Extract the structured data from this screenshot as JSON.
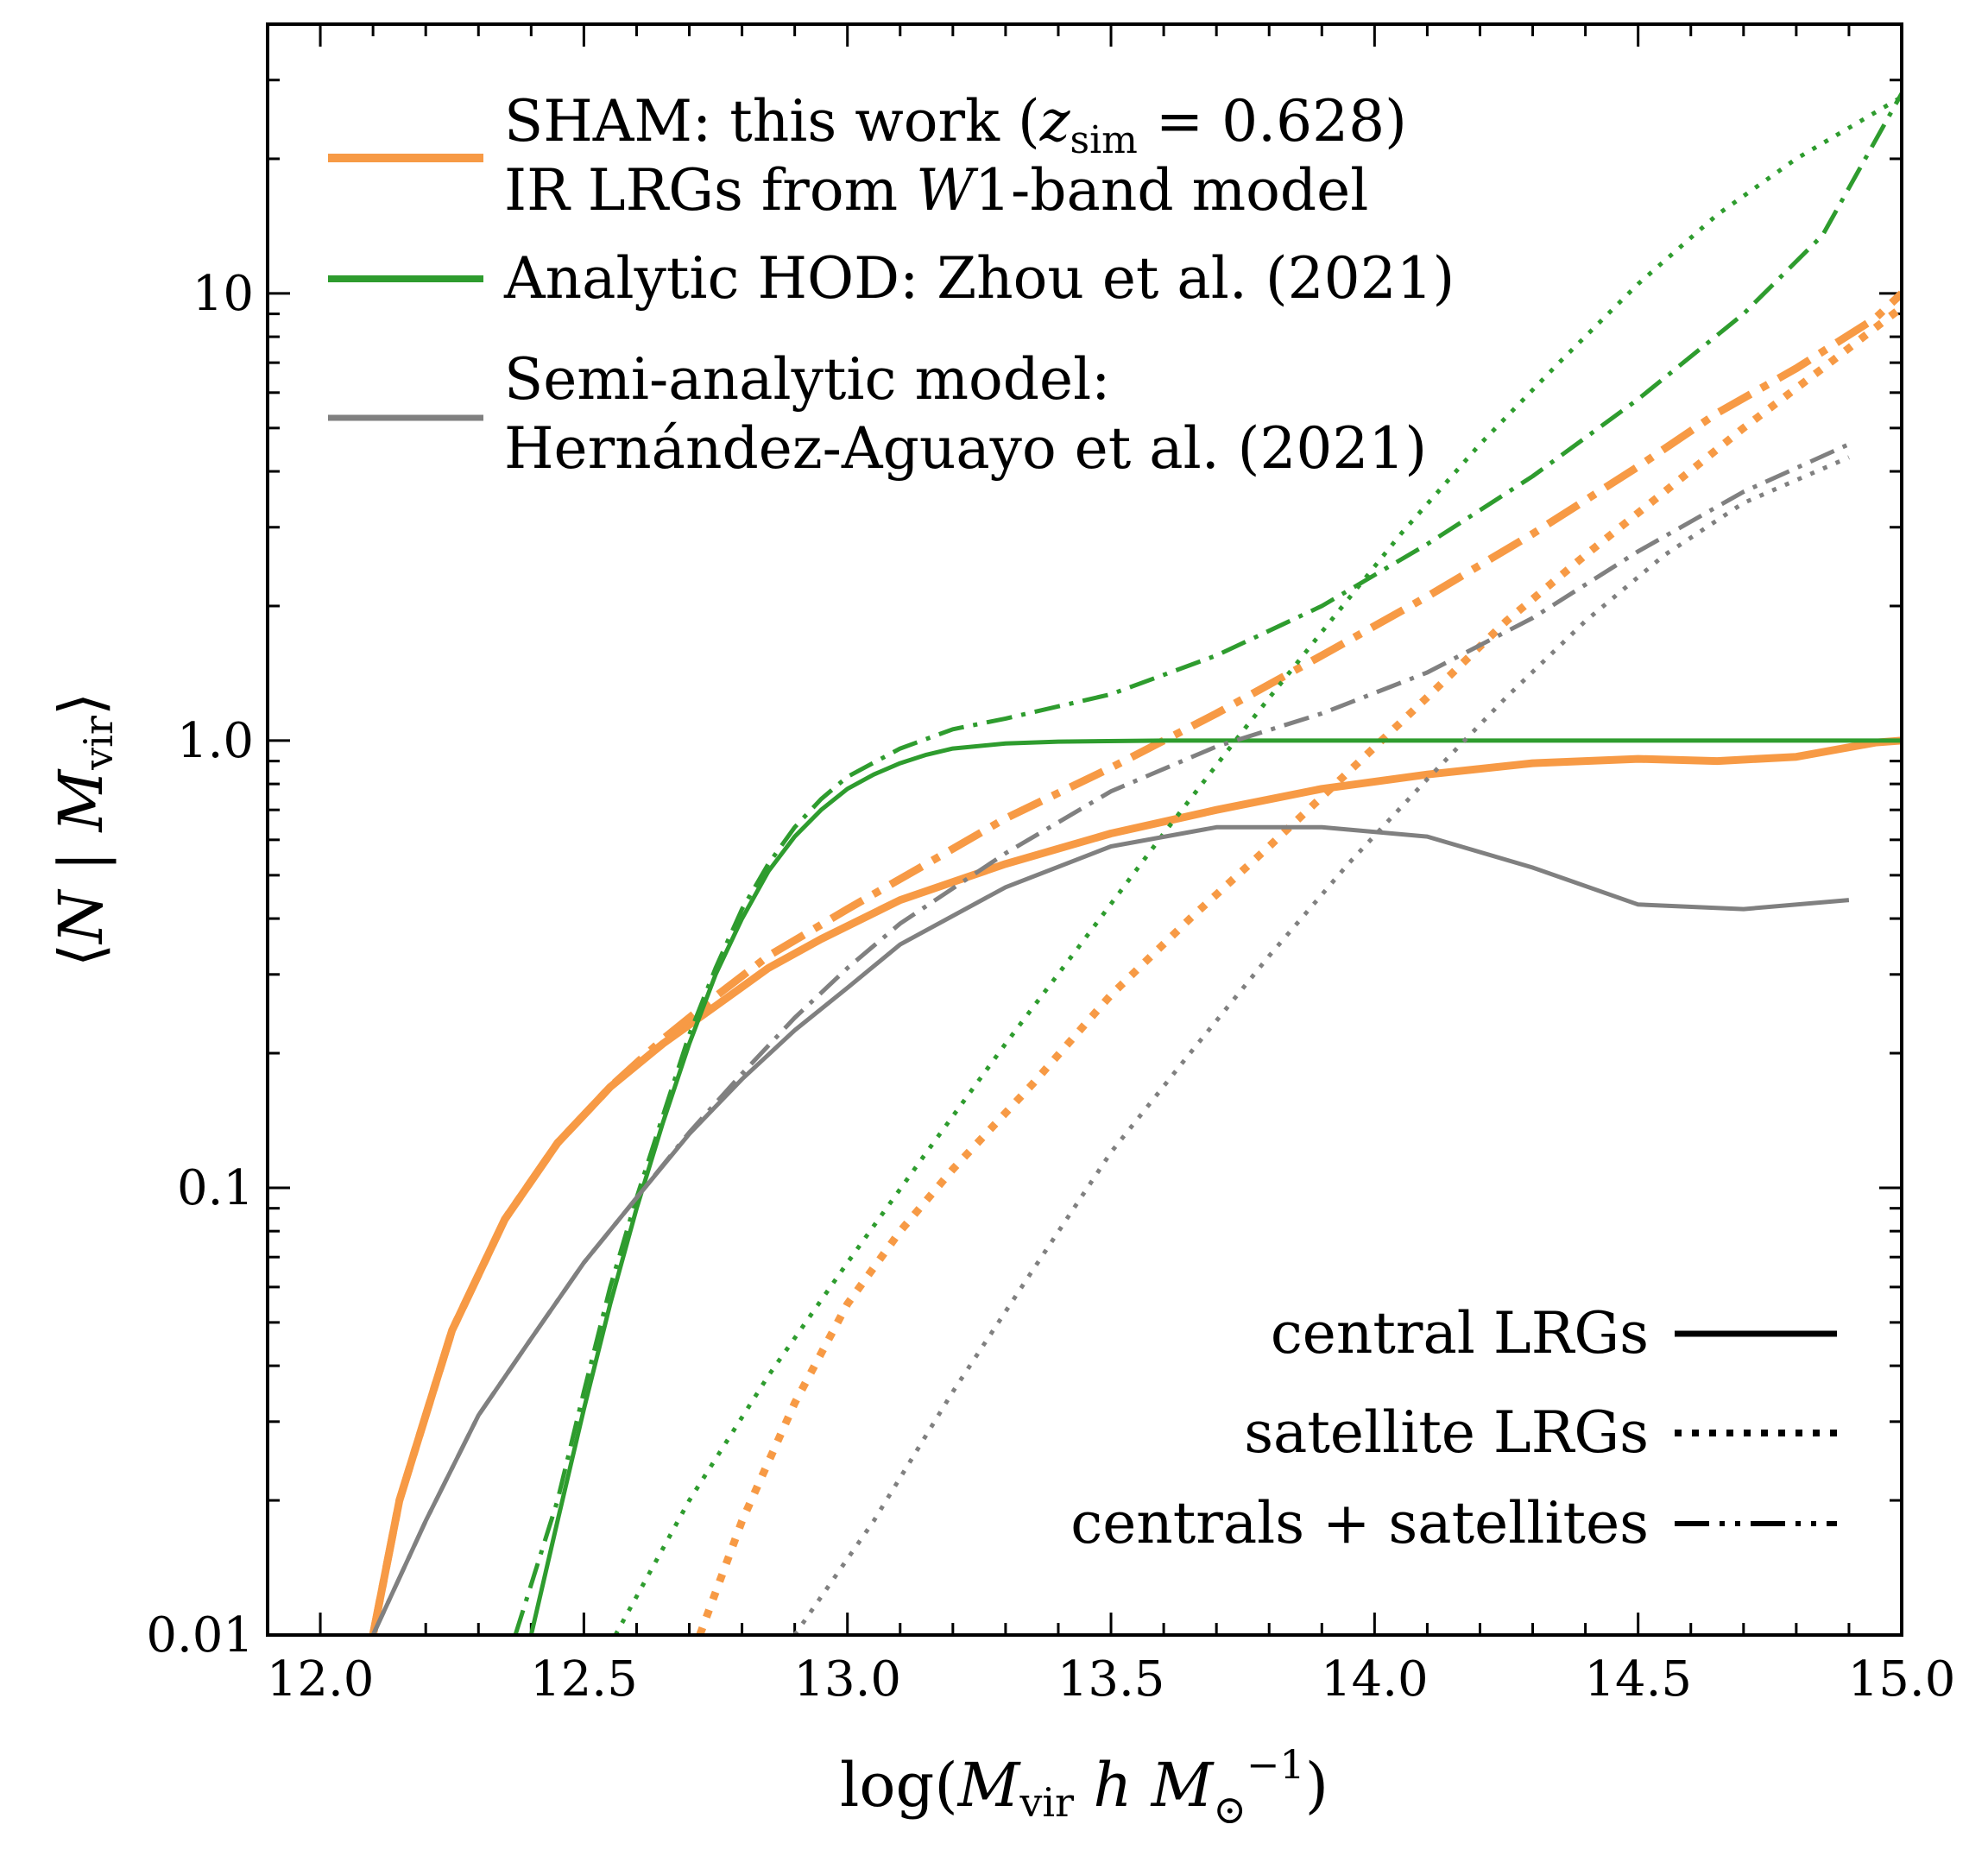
{
  "chart_data": {
    "type": "line",
    "xlabel": "log(M_vir h M_⊙^-1)",
    "ylabel": "⟨N | M_vir⟩",
    "xlim": [
      11.9,
      15.0
    ],
    "ylim": [
      0.01,
      40
    ],
    "yscale": "log",
    "xticks": [
      12.0,
      12.5,
      13.0,
      13.5,
      14.0,
      14.5,
      15.0
    ],
    "xtick_labels": [
      "12.0",
      "12.5",
      "13.0",
      "13.5",
      "14.0",
      "14.5",
      "15.0"
    ],
    "yticks": [
      0.01,
      0.1,
      1.0,
      10
    ],
    "ytick_labels": [
      "0.01",
      "0.1",
      "1.0",
      "10"
    ],
    "legend_models": [
      {
        "key": "sham",
        "color": "#f79a45",
        "lines": [
          "SHAM: this work (z_sim = 0.628)",
          "IR LRGs from W1-band model"
        ]
      },
      {
        "key": "zhou",
        "color": "#2e9c2e",
        "lines": [
          "Analytic HOD: Zhou et al. (2021)"
        ]
      },
      {
        "key": "sam",
        "color": "#808080",
        "lines": [
          "Semi-analytic model:",
          "Hernández-Aguayo et al. (2021)"
        ]
      }
    ],
    "legend_styles": [
      {
        "label": "central LRGs",
        "style": "solid"
      },
      {
        "label": "satellite LRGs",
        "style": "dotted"
      },
      {
        "label": "centrals + satellites",
        "style": "dashdot"
      }
    ],
    "series": [
      {
        "name": "SHAM central",
        "model": "sham",
        "style": "solid",
        "x": [
          12.1,
          12.15,
          12.25,
          12.35,
          12.45,
          12.55,
          12.65,
          12.75,
          12.85,
          12.95,
          13.1,
          13.3,
          13.5,
          13.7,
          13.9,
          14.1,
          14.3,
          14.5,
          14.65,
          14.8,
          14.95,
          15.0
        ],
        "y": [
          0.01,
          0.02,
          0.048,
          0.085,
          0.126,
          0.168,
          0.21,
          0.255,
          0.31,
          0.36,
          0.44,
          0.53,
          0.62,
          0.7,
          0.78,
          0.84,
          0.89,
          0.91,
          0.9,
          0.92,
          0.99,
          1.0
        ]
      },
      {
        "name": "SHAM satellite",
        "model": "sham",
        "style": "dotted",
        "x": [
          12.72,
          12.8,
          12.9,
          13.0,
          13.1,
          13.2,
          13.35,
          13.5,
          13.65,
          13.8,
          13.95,
          14.1,
          14.25,
          14.4,
          14.55,
          14.7,
          14.85,
          15.0
        ],
        "y": [
          0.01,
          0.018,
          0.033,
          0.055,
          0.08,
          0.11,
          0.17,
          0.27,
          0.4,
          0.58,
          0.85,
          1.25,
          1.85,
          2.6,
          3.6,
          5.0,
          6.8,
          9.3
        ]
      },
      {
        "name": "SHAM centrals + satellites",
        "model": "sham",
        "style": "dashdot",
        "x": [
          12.1,
          12.15,
          12.25,
          12.35,
          12.45,
          12.55,
          12.65,
          12.75,
          12.85,
          13.0,
          13.15,
          13.3,
          13.5,
          13.7,
          13.9,
          14.1,
          14.3,
          14.5,
          14.65,
          14.8,
          14.95,
          15.0
        ],
        "y": [
          0.01,
          0.02,
          0.048,
          0.085,
          0.126,
          0.168,
          0.215,
          0.268,
          0.33,
          0.42,
          0.53,
          0.67,
          0.87,
          1.15,
          1.55,
          2.1,
          2.9,
          4.1,
          5.4,
          6.8,
          8.8,
          10.0
        ]
      },
      {
        "name": "Zhou central",
        "model": "zhou",
        "style": "solid",
        "x": [
          12.4,
          12.45,
          12.5,
          12.55,
          12.6,
          12.65,
          12.7,
          12.75,
          12.8,
          12.85,
          12.9,
          12.95,
          13.0,
          13.05,
          13.1,
          13.15,
          13.2,
          13.3,
          13.4,
          13.6,
          14.0,
          15.0
        ],
        "y": [
          0.01,
          0.018,
          0.032,
          0.055,
          0.09,
          0.14,
          0.21,
          0.3,
          0.4,
          0.51,
          0.61,
          0.7,
          0.78,
          0.84,
          0.89,
          0.93,
          0.96,
          0.985,
          0.995,
          1.0,
          1.0,
          1.0
        ]
      },
      {
        "name": "Zhou satellite",
        "model": "zhou",
        "style": "dotted",
        "x": [
          12.56,
          12.7,
          12.85,
          13.0,
          13.15,
          13.3,
          13.45,
          13.6,
          13.75,
          13.9,
          14.05,
          14.2,
          14.35,
          14.5,
          14.65,
          14.8,
          15.0
        ],
        "y": [
          0.01,
          0.02,
          0.038,
          0.068,
          0.12,
          0.21,
          0.36,
          0.62,
          1.05,
          1.75,
          2.9,
          4.6,
          7.0,
          10.5,
          15.0,
          20.0,
          27.5
        ]
      },
      {
        "name": "Zhou centrals + satellites",
        "model": "zhou",
        "style": "dashdot",
        "x": [
          12.37,
          12.45,
          12.5,
          12.55,
          12.6,
          12.65,
          12.7,
          12.75,
          12.8,
          12.85,
          12.9,
          12.95,
          13.0,
          13.1,
          13.2,
          13.3,
          13.5,
          13.7,
          13.9,
          14.1,
          14.3,
          14.5,
          14.7,
          14.85,
          15.0
        ],
        "y": [
          0.01,
          0.02,
          0.035,
          0.06,
          0.095,
          0.145,
          0.22,
          0.31,
          0.42,
          0.53,
          0.64,
          0.74,
          0.83,
          0.96,
          1.06,
          1.12,
          1.27,
          1.55,
          2.0,
          2.75,
          3.9,
          5.8,
          9.0,
          13.5,
          28.0
        ]
      },
      {
        "name": "SAM central",
        "model": "sam",
        "style": "solid",
        "x": [
          12.1,
          12.2,
          12.3,
          12.4,
          12.5,
          12.6,
          12.7,
          12.8,
          12.9,
          13.0,
          13.1,
          13.3,
          13.5,
          13.7,
          13.9,
          14.1,
          14.3,
          14.5,
          14.7,
          14.9
        ],
        "y": [
          0.01,
          0.018,
          0.031,
          0.046,
          0.068,
          0.095,
          0.132,
          0.175,
          0.225,
          0.28,
          0.35,
          0.47,
          0.58,
          0.64,
          0.64,
          0.61,
          0.52,
          0.43,
          0.42,
          0.44
        ]
      },
      {
        "name": "SAM satellite",
        "model": "sam",
        "style": "dotted",
        "x": [
          12.9,
          13.05,
          13.2,
          13.35,
          13.5,
          13.65,
          13.8,
          13.95,
          14.1,
          14.25,
          14.4,
          14.55,
          14.7,
          14.9
        ],
        "y": [
          0.01,
          0.018,
          0.035,
          0.065,
          0.12,
          0.2,
          0.33,
          0.53,
          0.82,
          1.25,
          1.85,
          2.6,
          3.4,
          4.3
        ]
      },
      {
        "name": "SAM centrals + satellites",
        "model": "sam",
        "style": "dashdot",
        "x": [
          12.1,
          12.2,
          12.3,
          12.4,
          12.5,
          12.6,
          12.7,
          12.8,
          12.9,
          13.0,
          13.1,
          13.3,
          13.5,
          13.7,
          13.9,
          14.1,
          14.3,
          14.5,
          14.7,
          14.9
        ],
        "y": [
          0.01,
          0.018,
          0.031,
          0.046,
          0.068,
          0.095,
          0.133,
          0.18,
          0.24,
          0.31,
          0.39,
          0.56,
          0.77,
          0.97,
          1.15,
          1.42,
          1.88,
          2.65,
          3.6,
          4.6
        ]
      }
    ]
  }
}
